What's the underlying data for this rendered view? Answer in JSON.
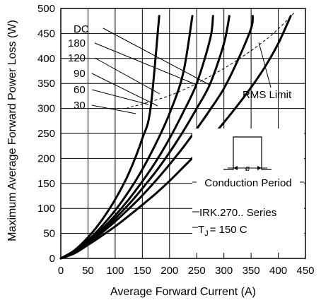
{
  "chart_data": {
    "type": "line",
    "xlabel": "Average Forward Current (A)",
    "ylabel": "Maximum Average Forward Power Loss (W)",
    "xlim": [
      0,
      450
    ],
    "ylim": [
      0,
      500
    ],
    "x_ticks": [
      "0",
      "50",
      "100",
      "150",
      "200",
      "250",
      "300",
      "350",
      "400",
      "450"
    ],
    "y_ticks": [
      "0",
      "50",
      "100",
      "150",
      "200",
      "250",
      "300",
      "350",
      "400",
      "450",
      "500"
    ],
    "grid": true,
    "series": [
      {
        "name": "30",
        "points": [
          [
            0,
            0
          ],
          [
            25,
            16
          ],
          [
            50,
            42
          ],
          [
            75,
            76
          ],
          [
            100,
            118
          ],
          [
            125,
            170
          ],
          [
            150,
            240
          ],
          [
            165,
            300
          ],
          [
            181,
            485
          ]
        ]
      },
      {
        "name": "60",
        "points": [
          [
            0,
            0
          ],
          [
            25,
            14
          ],
          [
            50,
            36
          ],
          [
            75,
            64
          ],
          [
            100,
            96
          ],
          [
            125,
            134
          ],
          [
            150,
            178
          ],
          [
            175,
            230
          ],
          [
            200,
            290
          ],
          [
            225,
            370
          ],
          [
            242,
            485
          ]
        ]
      },
      {
        "name": "90",
        "points": [
          [
            0,
            0
          ],
          [
            25,
            13
          ],
          [
            50,
            34
          ],
          [
            75,
            58
          ],
          [
            100,
            86
          ],
          [
            125,
            118
          ],
          [
            150,
            154
          ],
          [
            175,
            194
          ],
          [
            200,
            240
          ],
          [
            225,
            292
          ],
          [
            250,
            350
          ],
          [
            275,
            440
          ],
          [
            280,
            485
          ]
        ]
      },
      {
        "name": "120",
        "points": [
          [
            0,
            0
          ],
          [
            25,
            12
          ],
          [
            50,
            32
          ],
          [
            75,
            54
          ],
          [
            100,
            80
          ],
          [
            125,
            108
          ],
          [
            150,
            140
          ],
          [
            175,
            174
          ],
          [
            200,
            212
          ],
          [
            225,
            254
          ],
          [
            250,
            300
          ],
          [
            275,
            350
          ],
          [
            300,
            430
          ],
          [
            310,
            485
          ]
        ]
      },
      {
        "name": "180",
        "points": [
          [
            0,
            0
          ],
          [
            25,
            11
          ],
          [
            50,
            30
          ],
          [
            75,
            51
          ],
          [
            100,
            74
          ],
          [
            125,
            99
          ],
          [
            150,
            126
          ],
          [
            175,
            156
          ],
          [
            200,
            188
          ],
          [
            225,
            222
          ],
          [
            250,
            259
          ],
          [
            275,
            298
          ],
          [
            300,
            340
          ],
          [
            325,
            395
          ],
          [
            350,
            460
          ],
          [
            353,
            485
          ]
        ]
      },
      {
        "name": "DC",
        "points": [
          [
            0,
            0
          ],
          [
            25,
            10
          ],
          [
            50,
            27
          ],
          [
            75,
            45
          ],
          [
            100,
            64
          ],
          [
            125,
            85
          ],
          [
            150,
            107
          ],
          [
            175,
            130
          ],
          [
            200,
            155
          ],
          [
            225,
            182
          ],
          [
            250,
            210
          ],
          [
            275,
            240
          ],
          [
            300,
            272
          ],
          [
            325,
            306
          ],
          [
            350,
            342
          ],
          [
            375,
            382
          ],
          [
            400,
            430
          ],
          [
            423,
            485
          ]
        ]
      }
    ],
    "rms_limit": {
      "name": "RMS Limit",
      "points": [
        [
          120,
          300
        ],
        [
          210,
          330
        ],
        [
          300,
          380
        ],
        [
          380,
          440
        ],
        [
          430,
          492
        ]
      ]
    },
    "annotations": {
      "conduction_period": "Conduction Period",
      "phi": "ø",
      "series_label": "IRK.270.. Series",
      "tj_prefix": "T",
      "tj_sub": "J",
      "tj_suffix": "= 150 C"
    }
  }
}
